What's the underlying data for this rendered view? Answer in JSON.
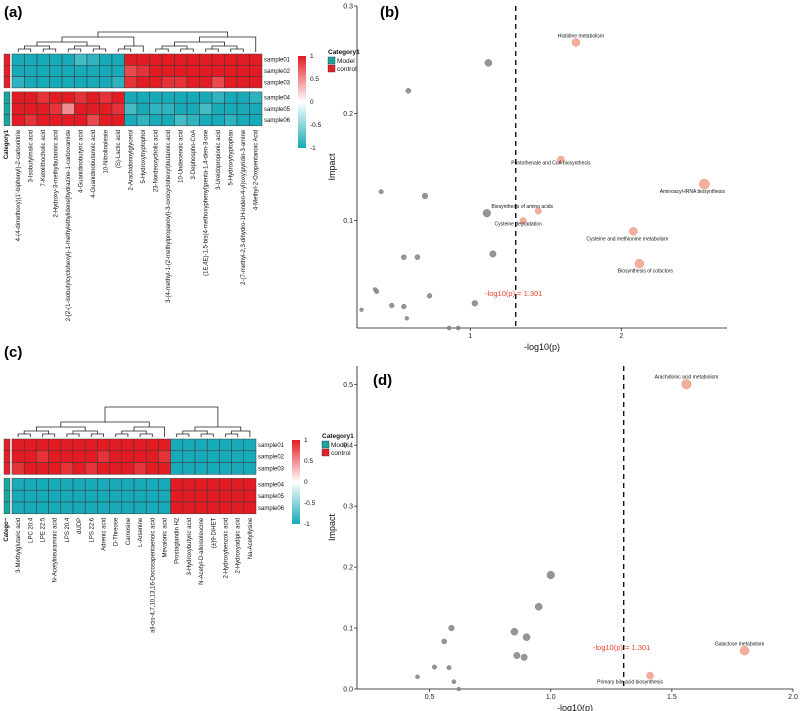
{
  "chart_data": [
    {
      "panel": "(a)",
      "type": "heatmap",
      "rows": [
        "sample01",
        "sample02",
        "sample03",
        "sample04",
        "sample05",
        "sample06"
      ],
      "row_groups": [
        "control",
        "control",
        "control",
        "Model",
        "Model",
        "Model"
      ],
      "columns": [
        "4-(4-dimethoxy)(1'-biphenyl)-2-carbonitrile",
        "3-Isobutylmalic acid",
        "7-Ketolithocholic acid",
        "2-Hydroxy-3-methylbutanoic acid",
        "2-[2-(1-isobutylcyclohexyl)-1-methylethylidene]hydrazine-1-carboxamide",
        "4-Guanidinobutyric acid",
        "4-Guanidinobutanoic acid",
        "10-Nitrolinoleate",
        "(S)-Lactic acid",
        "2-Arachidonoylglycerol",
        "5-Hydroxytryptophol",
        "23-Nordeoxycholic acid",
        "3-(4-methyl-1-(2-methylpropanoyl)-3-oxocyclohexyl)butanoic acid",
        "10-Undecenoic acid",
        "3-Dephospho-CoA",
        "(1E,4E)-1,5-bis(4-methoxyphenyl)penta-1,4-dien-3-one",
        "3-Ureidopropionic acid",
        "5-Hydroxytryptophan",
        "2-(7-methyl-2,3-dihydro-1H-inden-4-yl)oxy)pyridin-3-amine",
        "4-Methyl-2-Oxopentanoic Acid"
      ],
      "values": [
        [
          -1,
          -1,
          -1,
          -1,
          -1,
          -0.8,
          -0.9,
          -1,
          -1,
          1,
          1,
          1,
          1,
          1,
          1,
          1,
          1,
          1,
          1,
          1
        ],
        [
          -1,
          -1,
          -1,
          -1,
          -1,
          -1,
          -1,
          -1,
          -1,
          0.8,
          0.9,
          1,
          1,
          1,
          1,
          1,
          1,
          1,
          1,
          1
        ],
        [
          -0.9,
          -1,
          -1,
          -1,
          -1,
          -1,
          -1,
          -1,
          -0.9,
          0.9,
          1,
          1,
          0.9,
          0.9,
          1,
          1,
          0.8,
          1,
          1,
          1
        ],
        [
          1,
          1,
          0.9,
          1,
          1,
          0.9,
          1,
          0.9,
          1,
          -1,
          -1,
          -1,
          -1,
          -1,
          -1,
          -1,
          -0.9,
          -1,
          -1,
          -0.9
        ],
        [
          1,
          1,
          1,
          0.9,
          0.5,
          1,
          1,
          1,
          0.9,
          -0.8,
          -1,
          -0.9,
          -0.9,
          -1,
          -1,
          -0.8,
          -1,
          -1,
          -1,
          -1
        ],
        [
          1,
          0.9,
          1,
          1,
          1,
          1,
          0.8,
          1,
          1,
          -1,
          -0.9,
          -1,
          -1,
          -0.8,
          -0.9,
          -1,
          -1,
          -0.9,
          -1,
          -1
        ]
      ],
      "category_label": "Category1",
      "legend": [
        "Model",
        "control"
      ],
      "legend_colors": [
        "#1aa59b",
        "#e3202a"
      ],
      "colorbar_ticks": [
        "1",
        "0.5",
        "0",
        "-0.5",
        "-1"
      ],
      "colorbar_range": [
        -1,
        1
      ]
    },
    {
      "panel": "(b)",
      "type": "scatter",
      "xlabel": "-log10(p)",
      "ylabel": "Impact",
      "xlim": [
        0.25,
        2.7
      ],
      "ylim": [
        0,
        0.3
      ],
      "xticks": [
        1,
        2
      ],
      "yticks": [
        0.1,
        0.2,
        0.3
      ],
      "threshold": 1.301,
      "threshold_label": "-log10(p) = 1.301",
      "points": [
        {
          "x": 1.12,
          "y": 0.247,
          "size": 2.2,
          "sig": false,
          "label": ""
        },
        {
          "x": 0.59,
          "y": 0.221,
          "size": 1.6,
          "sig": false,
          "label": ""
        },
        {
          "x": 0.41,
          "y": 0.127,
          "size": 1.4,
          "sig": false,
          "label": ""
        },
        {
          "x": 0.7,
          "y": 0.123,
          "size": 1.8,
          "sig": false,
          "label": ""
        },
        {
          "x": 1.11,
          "y": 0.107,
          "size": 2.4,
          "sig": false,
          "label": ""
        },
        {
          "x": 1.15,
          "y": 0.069,
          "size": 2,
          "sig": false,
          "label": ""
        },
        {
          "x": 0.56,
          "y": 0.066,
          "size": 1.6,
          "sig": false,
          "label": ""
        },
        {
          "x": 0.65,
          "y": 0.066,
          "size": 1.6,
          "sig": false,
          "label": ""
        },
        {
          "x": 0.38,
          "y": 0.034,
          "size": 1.4,
          "sig": false,
          "label": ""
        },
        {
          "x": 0.37,
          "y": 0.036,
          "size": 1.2,
          "sig": false,
          "label": ""
        },
        {
          "x": 0.73,
          "y": 0.03,
          "size": 1.5,
          "sig": false,
          "label": ""
        },
        {
          "x": 1.03,
          "y": 0.023,
          "size": 1.8,
          "sig": false,
          "label": ""
        },
        {
          "x": 0.48,
          "y": 0.021,
          "size": 1.5,
          "sig": false,
          "label": ""
        },
        {
          "x": 0.56,
          "y": 0.02,
          "size": 1.5,
          "sig": false,
          "label": ""
        },
        {
          "x": 0.28,
          "y": 0.017,
          "size": 1.2,
          "sig": false,
          "label": ""
        },
        {
          "x": 0.58,
          "y": 0.009,
          "size": 1.2,
          "sig": false,
          "label": ""
        },
        {
          "x": 0.86,
          "y": 0,
          "size": 1.3,
          "sig": false,
          "label": ""
        },
        {
          "x": 0.92,
          "y": 0,
          "size": 1.3,
          "sig": false,
          "label": ""
        },
        {
          "x": 1.7,
          "y": 0.266,
          "size": 2.5,
          "sig": true,
          "label": "Histidine metabolism"
        },
        {
          "x": 1.6,
          "y": 0.157,
          "size": 2.2,
          "sig": true,
          "label": "Pantothenate and CoA biosynthesis"
        },
        {
          "x": 2.55,
          "y": 0.134,
          "size": 3.2,
          "sig": true,
          "label": "Aminoacyl-tRNA biosynthesis"
        },
        {
          "x": 1.45,
          "y": 0.109,
          "size": 2,
          "sig": true,
          "label": "Biosynthesis of amino acids"
        },
        {
          "x": 1.35,
          "y": 0.1,
          "size": 2,
          "sig": true,
          "label": "Cysteine degradation"
        },
        {
          "x": 2.08,
          "y": 0.09,
          "size": 2.5,
          "sig": true,
          "label": "Cysteine and methionine metabolism"
        },
        {
          "x": 2.12,
          "y": 0.06,
          "size": 2.8,
          "sig": true,
          "label": "Biosynthesis of cofactors"
        }
      ]
    },
    {
      "panel": "(c)",
      "type": "heatmap",
      "rows": [
        "sample01",
        "sample02",
        "sample03",
        "sample04",
        "sample05",
        "sample06"
      ],
      "row_groups": [
        "control",
        "control",
        "control",
        "Model",
        "Model",
        "Model"
      ],
      "columns": [
        "3-Methylglutaric acid",
        "LPC 20:4",
        "LPE 22:5",
        "N-Acetylneuraminic acid",
        "LPS 20:4",
        "dUDP",
        "LPS 22:6",
        "Adrenic acid",
        "D-Threose",
        "Carnosine",
        "L-Arsenine",
        "all-cis-4,7,10,13,16-Docosapentaenoic acid",
        "Mevalonic acid",
        "Prostaglandin H2",
        "3-Hydroxybutyric acid",
        "N-Acetyl-D-alloisoleucine",
        "(±)9-DiHET",
        "2-Hydroxybenzoic acid",
        "2-Hydroxyadipic acid",
        "Na-Acetyllysine"
      ],
      "values": [
        [
          1,
          1,
          1,
          1,
          1,
          1,
          1,
          1,
          1,
          1,
          1,
          1,
          1,
          -1,
          -1,
          -1,
          -1,
          -1,
          -1,
          -1
        ],
        [
          1,
          1,
          0.9,
          1,
          1,
          1,
          1,
          0.9,
          1,
          1,
          1,
          1,
          0.9,
          -1,
          -1,
          -1,
          -1,
          -1,
          -1,
          -1
        ],
        [
          0.9,
          1,
          1,
          1,
          0.9,
          1,
          0.9,
          1,
          1,
          1,
          0.9,
          1,
          1,
          -1,
          -1,
          -1,
          -1,
          -1,
          -1,
          -1
        ],
        [
          -1,
          -1,
          -1,
          -1,
          -1,
          -1,
          -1,
          -1,
          -1,
          -1,
          -1,
          -1,
          -1,
          1,
          1,
          1,
          1,
          1,
          1,
          1
        ],
        [
          -1,
          -1,
          -1,
          -1,
          -1,
          -1,
          -1,
          -1,
          -1,
          -1,
          -1,
          -1,
          -1,
          1,
          1,
          1,
          1,
          1,
          1,
          1
        ],
        [
          -1,
          -1,
          -1,
          -1,
          -1,
          -1,
          -1,
          -1,
          -1,
          -1,
          -1,
          -1,
          -1,
          1,
          1,
          1,
          1,
          1,
          1,
          1
        ]
      ],
      "category_label": "Catego~",
      "legend": [
        "Model",
        "control"
      ],
      "legend_colors": [
        "#1aa59b",
        "#e3202a"
      ],
      "colorbar_ticks": [
        "1",
        "0.5",
        "0",
        "-0.5",
        "-1"
      ],
      "colorbar_range": [
        -1,
        1
      ]
    },
    {
      "panel": "(d)",
      "type": "scatter",
      "xlabel": "-log10(p)",
      "ylabel": "Impact",
      "xlim": [
        0.2,
        2.0
      ],
      "ylim": [
        0,
        0.53
      ],
      "xticks": [
        0.5,
        1.0,
        1.5,
        2.0
      ],
      "yticks": [
        0.0,
        0.1,
        0.2,
        0.3,
        0.4,
        0.5
      ],
      "threshold": 1.301,
      "threshold_label": "-log10(p) = 1.301",
      "points": [
        {
          "x": 1.0,
          "y": 0.187,
          "size": 2.4,
          "sig": false,
          "label": ""
        },
        {
          "x": 0.95,
          "y": 0.135,
          "size": 2.2,
          "sig": false,
          "label": ""
        },
        {
          "x": 0.59,
          "y": 0.1,
          "size": 1.8,
          "sig": false,
          "label": ""
        },
        {
          "x": 0.85,
          "y": 0.094,
          "size": 2.2,
          "sig": false,
          "label": ""
        },
        {
          "x": 0.9,
          "y": 0.085,
          "size": 2.2,
          "sig": false,
          "label": ""
        },
        {
          "x": 0.56,
          "y": 0.078,
          "size": 1.6,
          "sig": false,
          "label": ""
        },
        {
          "x": 0.86,
          "y": 0.055,
          "size": 2,
          "sig": false,
          "label": ""
        },
        {
          "x": 0.89,
          "y": 0.052,
          "size": 2,
          "sig": false,
          "label": ""
        },
        {
          "x": 0.52,
          "y": 0.036,
          "size": 1.4,
          "sig": false,
          "label": ""
        },
        {
          "x": 0.58,
          "y": 0.035,
          "size": 1.4,
          "sig": false,
          "label": ""
        },
        {
          "x": 0.45,
          "y": 0.02,
          "size": 1.3,
          "sig": false,
          "label": ""
        },
        {
          "x": 0.6,
          "y": 0.012,
          "size": 1.3,
          "sig": false,
          "label": ""
        },
        {
          "x": 0.62,
          "y": 0.0,
          "size": 1.2,
          "sig": false,
          "label": ""
        },
        {
          "x": 1.56,
          "y": 0.5,
          "size": 3,
          "sig": true,
          "label": "Arachidonic acid metabolism"
        },
        {
          "x": 1.8,
          "y": 0.063,
          "size": 2.8,
          "sig": true,
          "label": "Galactose metabolism"
        },
        {
          "x": 1.41,
          "y": 0.022,
          "size": 2.2,
          "sig": true,
          "label": "Primary bile acid biosynthesis"
        }
      ]
    }
  ]
}
